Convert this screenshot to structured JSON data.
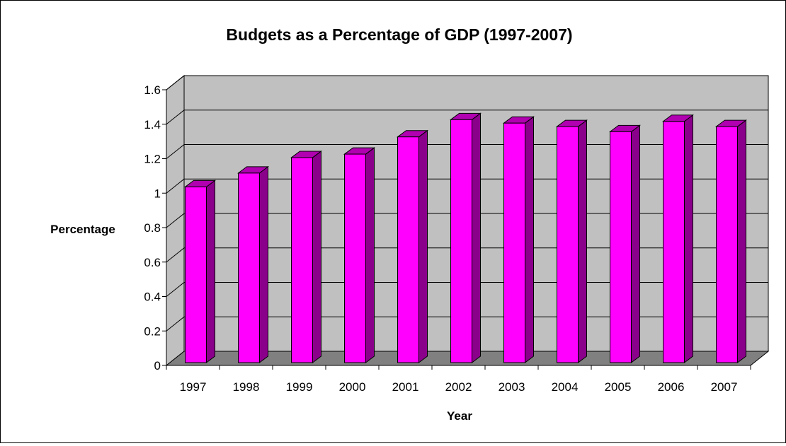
{
  "chart_data": {
    "type": "bar",
    "title": "Budgets as a Percentage of GDP (1997-2007)",
    "xlabel": "Year",
    "ylabel": "Percentage",
    "categories": [
      "1997",
      "1998",
      "1999",
      "2000",
      "2001",
      "2002",
      "2003",
      "2004",
      "2005",
      "2006",
      "2007"
    ],
    "series": [
      {
        "values": [
          1.02,
          1.1,
          1.19,
          1.21,
          1.31,
          1.41,
          1.39,
          1.37,
          1.34,
          1.4,
          1.37
        ]
      }
    ],
    "ylim": [
      0,
      1.6
    ],
    "yticks": [
      "0",
      "0.2",
      "0.4",
      "0.6",
      "0.8",
      "1",
      "1.2",
      "1.4",
      "1.6"
    ],
    "grid": true,
    "style": "3d-column",
    "colors": {
      "bar_front": "#FF00FF",
      "bar_side": "#8B008B",
      "bar_top": "#B000B0",
      "wall": "#C0C0C0",
      "floor": "#808080"
    }
  }
}
